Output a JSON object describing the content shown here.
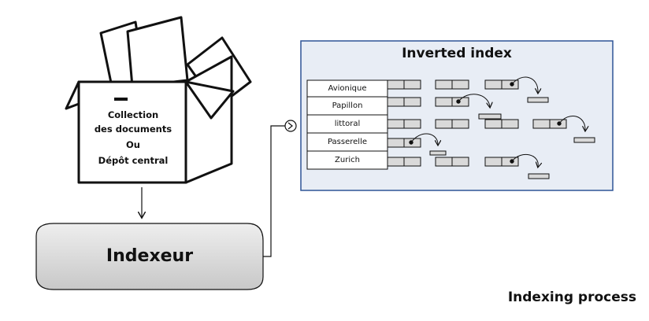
{
  "collection": {
    "lines": [
      "Collection",
      "des documents",
      "Ou",
      "Dépôt central"
    ]
  },
  "indexer": {
    "label": "Indexeur"
  },
  "inverted_index": {
    "title": "Inverted index",
    "terms": [
      "Avionique",
      "Papillon",
      "littoral",
      "Passerelle",
      "Zurich"
    ]
  },
  "caption": "Indexing process",
  "colors": {
    "index_panel_fill": "#e8edf5",
    "index_panel_border": "#2f5597",
    "posting_cell_fill": "#d9d9d9",
    "indexer_gradient_top": "#eeeeee",
    "indexer_gradient_bottom": "#c8c8c8",
    "line": "#111111"
  }
}
